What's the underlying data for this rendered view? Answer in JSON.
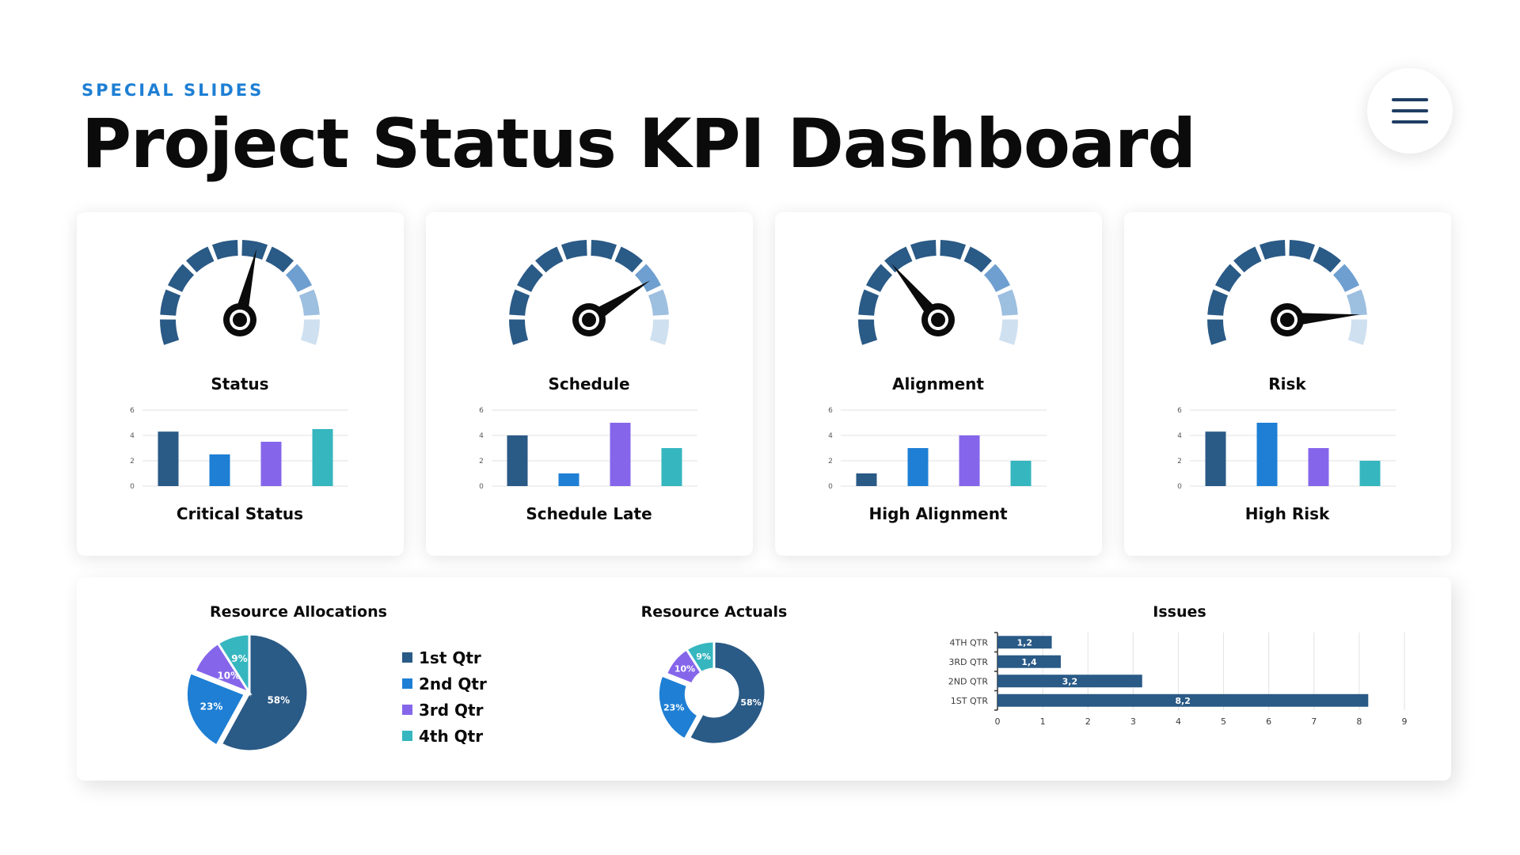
{
  "header": {
    "eyebrow": "SPECIAL SLIDES",
    "title": "Project Status KPI Dashboard"
  },
  "colors": {
    "accent": "#1e7fd4",
    "navy": "#2a5a86",
    "blue": "#1e7fd4",
    "purple": "#8566ea",
    "teal": "#36b6bf",
    "gauge_dark": "#2a5a86",
    "gauge_mid": "#6e9fd0",
    "gauge_light": "#9dbfe0",
    "gauge_faint": "#cfe0f0",
    "needle": "#0b0b0b"
  },
  "menu": {
    "icon": "hamburger-menu-icon"
  },
  "kpi_cards": [
    {
      "gauge_label": "Status",
      "bar_label": "Critical Status",
      "needle_level": 0.56
    },
    {
      "gauge_label": "Schedule",
      "bar_label": "Schedule Late",
      "needle_level": 0.76
    },
    {
      "gauge_label": "Alignment",
      "bar_label": "High Alignment",
      "needle_level": 0.32
    },
    {
      "gauge_label": "Risk",
      "bar_label": "High Risk",
      "needle_level": 0.89
    }
  ],
  "bottom": {
    "allocations_title": "Resource Allocations",
    "actuals_title": "Resource Actuals",
    "issues_title": "Issues",
    "legend": [
      "1st Qtr",
      "2nd Qtr",
      "3rd Qtr",
      "4th Qtr"
    ]
  },
  "chart_data": [
    {
      "type": "bar",
      "title": "Critical Status",
      "categories": [
        "",
        "",
        "",
        ""
      ],
      "values": [
        4.3,
        2.5,
        3.5,
        4.5
      ],
      "ylim": [
        0,
        6
      ],
      "yticks": [
        0,
        2,
        4,
        6
      ],
      "colors": [
        "#2a5a86",
        "#1e7fd4",
        "#8566ea",
        "#36b6bf"
      ],
      "grid": true
    },
    {
      "type": "bar",
      "title": "Schedule Late",
      "categories": [
        "",
        "",
        "",
        ""
      ],
      "values": [
        4,
        1,
        5,
        3
      ],
      "ylim": [
        0,
        6
      ],
      "yticks": [
        0,
        2,
        4,
        6
      ],
      "colors": [
        "#2a5a86",
        "#1e7fd4",
        "#8566ea",
        "#36b6bf"
      ],
      "grid": true
    },
    {
      "type": "bar",
      "title": "High Alignment",
      "categories": [
        "",
        "",
        "",
        ""
      ],
      "values": [
        1,
        3,
        4,
        2
      ],
      "ylim": [
        0,
        6
      ],
      "yticks": [
        0,
        2,
        4,
        6
      ],
      "colors": [
        "#2a5a86",
        "#1e7fd4",
        "#8566ea",
        "#36b6bf"
      ],
      "grid": true
    },
    {
      "type": "bar",
      "title": "High Risk",
      "categories": [
        "",
        "",
        "",
        ""
      ],
      "values": [
        4.3,
        5,
        3,
        2
      ],
      "ylim": [
        0,
        6
      ],
      "yticks": [
        0,
        2,
        4,
        6
      ],
      "colors": [
        "#2a5a86",
        "#1e7fd4",
        "#8566ea",
        "#36b6bf"
      ],
      "grid": true
    },
    {
      "type": "pie",
      "title": "Resource Allocations",
      "categories": [
        "1st Qtr",
        "2nd Qtr",
        "3rd Qtr",
        "4th Qtr"
      ],
      "values": [
        58,
        23,
        10,
        9
      ],
      "labels": [
        "58%",
        "23%",
        "10%",
        "9%"
      ],
      "colors": [
        "#2a5a86",
        "#1e7fd4",
        "#8566ea",
        "#36b6bf"
      ],
      "legend": "right"
    },
    {
      "type": "pie",
      "title": "Resource Actuals",
      "categories": [
        "1st Qtr",
        "2nd Qtr",
        "3rd Qtr",
        "4th Qtr"
      ],
      "values": [
        58,
        23,
        10,
        9
      ],
      "labels": [
        "58%",
        "23%",
        "10%",
        "9%"
      ],
      "colors": [
        "#2a5a86",
        "#1e7fd4",
        "#8566ea",
        "#36b6bf"
      ],
      "donut": true
    },
    {
      "type": "bar",
      "orientation": "horizontal",
      "title": "Issues",
      "categories": [
        "4TH QTR",
        "3RD QTR",
        "2ND QTR",
        "1ST QTR"
      ],
      "values": [
        1.2,
        1.4,
        3.2,
        8.2
      ],
      "labels": [
        "1,2",
        "1,4",
        "3,2",
        "8,2"
      ],
      "xlim": [
        0,
        9
      ],
      "xticks": [
        0,
        1,
        2,
        3,
        4,
        5,
        6,
        7,
        8,
        9
      ],
      "color": "#2a5a86",
      "grid": true
    }
  ]
}
